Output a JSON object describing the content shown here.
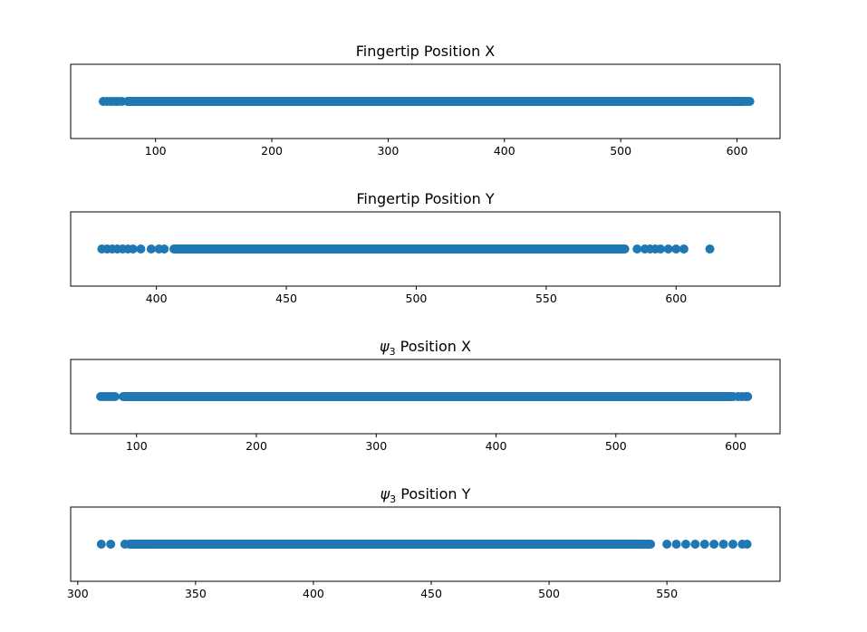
{
  "chart_data": [
    {
      "type": "scatter",
      "title": "Fingertip Position X",
      "title_main": "Position X",
      "title_prefix": "Fingertip",
      "title_symbol": "",
      "xlim": [
        27,
        637
      ],
      "xticks": [
        100,
        200,
        300,
        400,
        500,
        600
      ],
      "xtick_labels": [
        "100",
        "200",
        "300",
        "400",
        "500",
        "600"
      ],
      "yaxis_visible": false,
      "color": "#1f77b4",
      "dense_range": [
        72,
        610
      ],
      "points": [
        55,
        58,
        61,
        63,
        66,
        68,
        71,
        600,
        603,
        605,
        607,
        609,
        611
      ]
    },
    {
      "type": "scatter",
      "title": "Fingertip Position Y",
      "title_main": "Position Y",
      "title_prefix": "Fingertip",
      "title_symbol": "",
      "xlim": [
        367,
        640
      ],
      "xticks": [
        400,
        450,
        500,
        550,
        600
      ],
      "xtick_labels": [
        "400",
        "450",
        "500",
        "550",
        "600"
      ],
      "yaxis_visible": false,
      "color": "#1f77b4",
      "dense_range": [
        405,
        582
      ],
      "points": [
        379,
        381,
        383,
        385,
        387,
        389,
        391,
        394,
        398,
        401,
        403,
        585,
        588,
        590,
        592,
        594,
        597,
        600,
        603,
        613
      ]
    },
    {
      "type": "scatter",
      "title": "ψ3 Position X",
      "title_main": "Position X",
      "title_prefix": "",
      "title_symbol": "ψ",
      "title_subscript": "3",
      "xlim": [
        45,
        637
      ],
      "xticks": [
        100,
        200,
        300,
        400,
        500,
        600
      ],
      "xtick_labels": [
        "100",
        "200",
        "300",
        "400",
        "500",
        "600"
      ],
      "yaxis_visible": false,
      "color": "#1f77b4",
      "dense_range": [
        85,
        600
      ],
      "points": [
        70,
        72,
        74,
        76,
        78,
        80,
        82,
        590,
        594,
        598,
        602,
        605,
        608,
        610
      ]
    },
    {
      "type": "scatter",
      "title": "ψ3 Position Y",
      "title_main": "Position Y",
      "title_prefix": "",
      "title_symbol": "ψ",
      "title_subscript": "3",
      "xlim": [
        297,
        598
      ],
      "xticks": [
        300,
        350,
        400,
        450,
        500,
        550
      ],
      "xtick_labels": [
        "300",
        "350",
        "400",
        "450",
        "500",
        "550"
      ],
      "yaxis_visible": false,
      "color": "#1f77b4",
      "dense_range": [
        320,
        545
      ],
      "points": [
        310,
        314,
        320,
        324,
        328,
        550,
        554,
        558,
        562,
        566,
        570,
        574,
        578,
        582,
        584
      ]
    }
  ]
}
